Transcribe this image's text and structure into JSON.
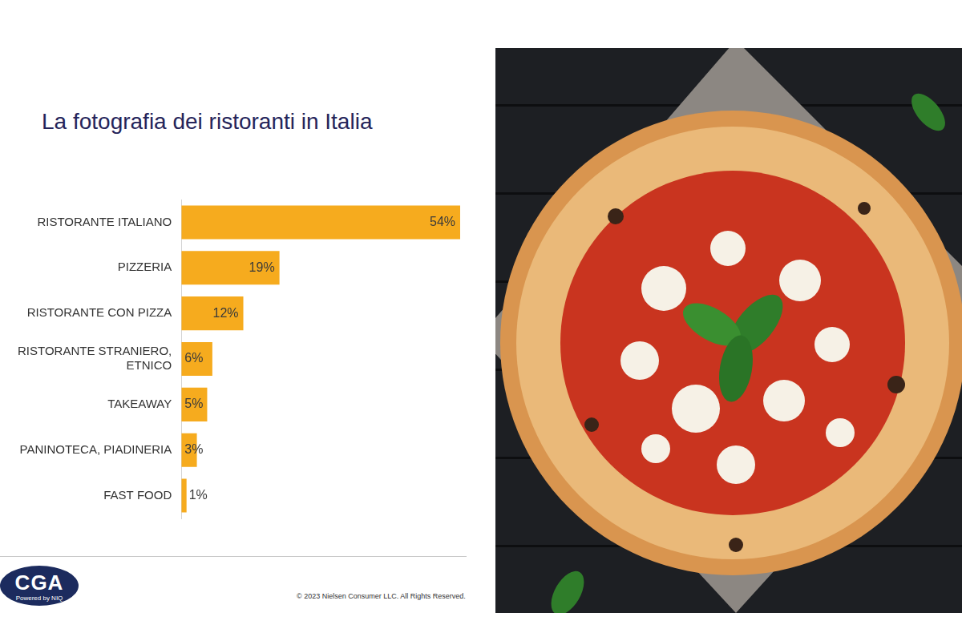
{
  "chart_data": {
    "type": "bar",
    "orientation": "horizontal",
    "title": "La fotografia dei ristoranti in Italia",
    "categories": [
      "RISTORANTE ITALIANO",
      "PIZZERIA",
      "RISTORANTE CON PIZZA",
      "RISTORANTE STRANIERO, ETNICO",
      "TAKEAWAY",
      "PANINOTECA, PIADINERIA",
      "FAST FOOD"
    ],
    "values": [
      54,
      19,
      12,
      6,
      5,
      3,
      1
    ],
    "value_labels": [
      "54%",
      "19%",
      "12%",
      "6%",
      "5%",
      "3%",
      "1%"
    ],
    "color": "#f6ab1e",
    "xlim": [
      0,
      54
    ],
    "grid": false,
    "data_labels": true,
    "tick_labels": "y"
  },
  "footer": {
    "copyright": "© 2023 Nielsen Consumer LLC. All Rights Reserved.",
    "logo": {
      "name": "CGA",
      "tagline": "Powered by NIQ"
    }
  }
}
